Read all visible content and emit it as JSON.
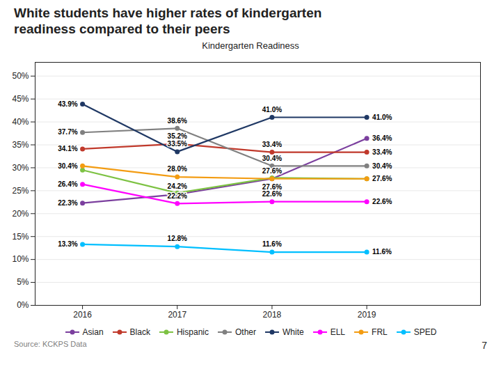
{
  "chart_data": {
    "type": "line",
    "title": "White students have higher rates of kindergarten\nreadiness compared to their peers",
    "subtitle": "Kindergarten Readiness",
    "caption": "Source: KCKPS Data",
    "page_number": 7,
    "x": [
      2016,
      2017,
      2018,
      2019
    ],
    "xlim": [
      2015.5,
      2020.2
    ],
    "xticks": [
      2016,
      2017,
      2018,
      2019
    ],
    "ylim": [
      0,
      53
    ],
    "yticks": [
      {
        "value": 0,
        "label": "0%"
      },
      {
        "value": 5,
        "label": "5%"
      },
      {
        "value": 10,
        "label": "10%"
      },
      {
        "value": 15,
        "label": "15%"
      },
      {
        "value": 20,
        "label": "20%"
      },
      {
        "value": 25,
        "label": "25%"
      },
      {
        "value": 30,
        "label": "30%"
      },
      {
        "value": 35,
        "label": "35%"
      },
      {
        "value": 40,
        "label": "40%"
      },
      {
        "value": 45,
        "label": "45%"
      },
      {
        "value": 50,
        "label": "50%"
      }
    ],
    "grid": true,
    "legend": "bottom",
    "marker": "circle",
    "data_labels": true,
    "series": [
      {
        "name": "Asian",
        "color": "#7B3F9E",
        "values": [
          22.3,
          24.2,
          27.6,
          36.4
        ],
        "value_labels": [
          "22.3%",
          "24.2%",
          "27.6%",
          "36.4%"
        ]
      },
      {
        "name": "Black",
        "color": "#C0392B",
        "values": [
          34.1,
          35.2,
          33.4,
          33.4
        ],
        "value_labels": [
          "34.1%",
          "35.2%",
          "33.4%",
          "33.4%"
        ]
      },
      {
        "name": "Hispanic",
        "color": "#7DC243",
        "values": [
          29.5,
          24.5,
          27.8,
          27.6
        ],
        "value_labels": [
          null,
          null,
          null,
          null
        ]
      },
      {
        "name": "Other",
        "color": "#808080",
        "values": [
          37.7,
          38.6,
          30.4,
          30.4
        ],
        "value_labels": [
          "37.7%",
          "38.6%",
          "30.4%",
          "30.4%"
        ]
      },
      {
        "name": "White",
        "color": "#1F3864",
        "values": [
          43.9,
          33.5,
          41.0,
          41.0
        ],
        "value_labels": [
          "43.9%",
          "33.5%",
          "41.0%",
          "41.0%"
        ]
      },
      {
        "name": "ELL",
        "color": "#FF00FF",
        "values": [
          26.4,
          22.2,
          22.6,
          22.6
        ],
        "value_labels": [
          "26.4%",
          "22.2%",
          "22.6%",
          "22.6%"
        ]
      },
      {
        "name": "FRL",
        "color": "#F39C12",
        "values": [
          30.4,
          28.0,
          27.6,
          27.6
        ],
        "value_labels": [
          "30.4%",
          "28.0%",
          "27.6%",
          "27.6%"
        ]
      },
      {
        "name": "SPED",
        "color": "#00BFFF",
        "values": [
          13.3,
          12.8,
          11.6,
          11.6
        ],
        "value_labels": [
          "13.3%",
          "12.8%",
          "11.6%",
          "11.6%"
        ]
      }
    ]
  }
}
